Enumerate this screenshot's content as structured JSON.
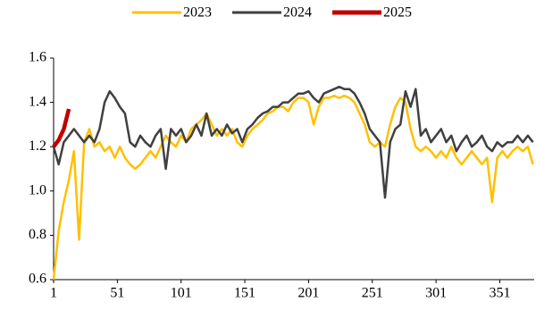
{
  "chart_data": {
    "type": "line",
    "x": [
      1,
      5,
      9,
      13,
      17,
      21,
      25,
      29,
      33,
      37,
      41,
      45,
      49,
      53,
      57,
      61,
      65,
      69,
      73,
      77,
      81,
      85,
      89,
      93,
      97,
      101,
      105,
      109,
      113,
      117,
      121,
      125,
      129,
      133,
      137,
      141,
      145,
      149,
      153,
      157,
      161,
      165,
      169,
      173,
      177,
      181,
      185,
      189,
      193,
      197,
      201,
      205,
      209,
      213,
      217,
      221,
      225,
      229,
      233,
      237,
      241,
      245,
      249,
      253,
      257,
      261,
      265,
      269,
      273,
      277,
      281,
      285,
      289,
      293,
      297,
      301,
      305,
      309,
      313,
      317,
      321,
      325,
      329,
      333,
      337,
      341,
      345,
      349,
      353,
      357,
      361,
      365,
      369,
      373,
      377
    ],
    "series": [
      {
        "name": "2023",
        "color": "#FFC000",
        "values": [
          0.6,
          0.82,
          0.95,
          1.05,
          1.18,
          0.78,
          1.22,
          1.28,
          1.2,
          1.22,
          1.18,
          1.2,
          1.15,
          1.2,
          1.15,
          1.12,
          1.1,
          1.12,
          1.15,
          1.18,
          1.15,
          1.2,
          1.25,
          1.22,
          1.2,
          1.25,
          1.22,
          1.28,
          1.3,
          1.32,
          1.35,
          1.3,
          1.25,
          1.28,
          1.25,
          1.28,
          1.22,
          1.2,
          1.25,
          1.28,
          1.3,
          1.32,
          1.35,
          1.36,
          1.38,
          1.38,
          1.36,
          1.4,
          1.42,
          1.42,
          1.4,
          1.3,
          1.38,
          1.42,
          1.42,
          1.43,
          1.42,
          1.43,
          1.42,
          1.4,
          1.35,
          1.3,
          1.22,
          1.2,
          1.22,
          1.2,
          1.3,
          1.38,
          1.42,
          1.4,
          1.28,
          1.2,
          1.18,
          1.2,
          1.18,
          1.15,
          1.18,
          1.15,
          1.2,
          1.15,
          1.12,
          1.15,
          1.18,
          1.15,
          1.12,
          1.15,
          0.95,
          1.15,
          1.18,
          1.15,
          1.18,
          1.2,
          1.18,
          1.2,
          1.12
        ]
      },
      {
        "name": "2024",
        "color": "#404040",
        "values": [
          1.2,
          1.12,
          1.22,
          1.25,
          1.28,
          1.25,
          1.22,
          1.25,
          1.22,
          1.28,
          1.4,
          1.45,
          1.42,
          1.38,
          1.35,
          1.22,
          1.2,
          1.25,
          1.22,
          1.2,
          1.25,
          1.28,
          1.1,
          1.28,
          1.25,
          1.28,
          1.22,
          1.25,
          1.3,
          1.25,
          1.35,
          1.25,
          1.28,
          1.25,
          1.3,
          1.26,
          1.28,
          1.22,
          1.28,
          1.3,
          1.33,
          1.35,
          1.36,
          1.38,
          1.38,
          1.4,
          1.4,
          1.42,
          1.44,
          1.44,
          1.45,
          1.42,
          1.4,
          1.44,
          1.45,
          1.46,
          1.47,
          1.46,
          1.46,
          1.44,
          1.4,
          1.35,
          1.28,
          1.25,
          1.22,
          0.97,
          1.22,
          1.28,
          1.3,
          1.45,
          1.38,
          1.46,
          1.25,
          1.28,
          1.22,
          1.25,
          1.28,
          1.22,
          1.25,
          1.18,
          1.22,
          1.25,
          1.2,
          1.22,
          1.25,
          1.2,
          1.18,
          1.22,
          1.2,
          1.22,
          1.22,
          1.25,
          1.22,
          1.25,
          1.22
        ]
      },
      {
        "name": "2025",
        "color": "#C00000",
        "values": [
          1.2,
          1.23,
          1.28,
          1.37,
          null,
          null,
          null,
          null,
          null,
          null,
          null,
          null,
          null,
          null,
          null,
          null,
          null,
          null,
          null,
          null,
          null,
          null,
          null,
          null,
          null,
          null,
          null,
          null,
          null,
          null,
          null,
          null,
          null,
          null,
          null,
          null,
          null,
          null,
          null,
          null,
          null,
          null,
          null,
          null,
          null,
          null,
          null,
          null,
          null,
          null,
          null,
          null,
          null,
          null,
          null,
          null,
          null,
          null,
          null,
          null,
          null,
          null,
          null,
          null,
          null,
          null,
          null,
          null,
          null,
          null,
          null,
          null,
          null,
          null,
          null,
          null,
          null,
          null,
          null,
          null,
          null,
          null,
          null,
          null,
          null,
          null,
          null,
          null,
          null,
          null,
          null,
          null,
          null,
          null,
          null
        ]
      }
    ],
    "xlim": [
      1,
      378
    ],
    "xticks": [
      1,
      51,
      101,
      151,
      201,
      251,
      301,
      351
    ],
    "ylim": [
      0.6,
      1.6
    ],
    "yticks": [
      0.6,
      0.8,
      {
        "value": 1,
        "label": "1.0"
      },
      1.2,
      1.4,
      1.6
    ],
    "legend": "top",
    "grid": false
  }
}
